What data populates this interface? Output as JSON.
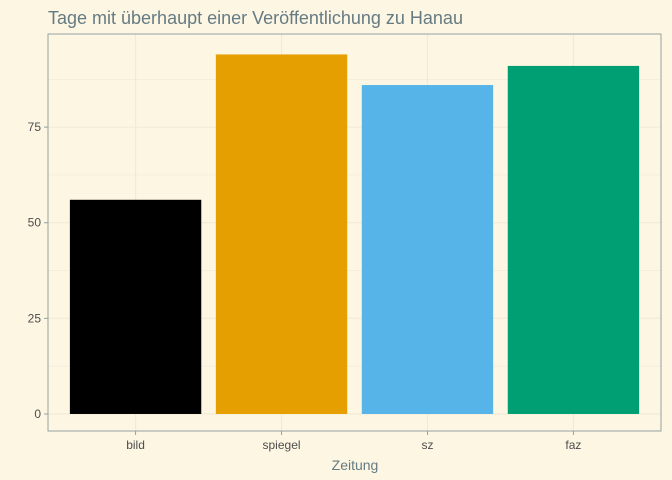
{
  "chart_data": {
    "type": "bar",
    "title": "Tage mit überhaupt einer Veröffentlichung zu Hanau",
    "xlabel": "Zeitung",
    "ylabel": "",
    "categories": [
      "bild",
      "spiegel",
      "sz",
      "faz"
    ],
    "values": [
      56,
      94,
      86,
      91
    ],
    "colors": [
      "#000000",
      "#e69f00",
      "#56b4e9",
      "#009e73"
    ],
    "ylim": [
      0,
      98.9
    ],
    "yticks": [
      0,
      25,
      50,
      75
    ],
    "grid": true,
    "legend": "none",
    "theme": {
      "background": "#fdf6e3",
      "grid_color": "#f2ead6",
      "border_color": "#93a1a1",
      "tick_color": "#93a1a1"
    }
  }
}
